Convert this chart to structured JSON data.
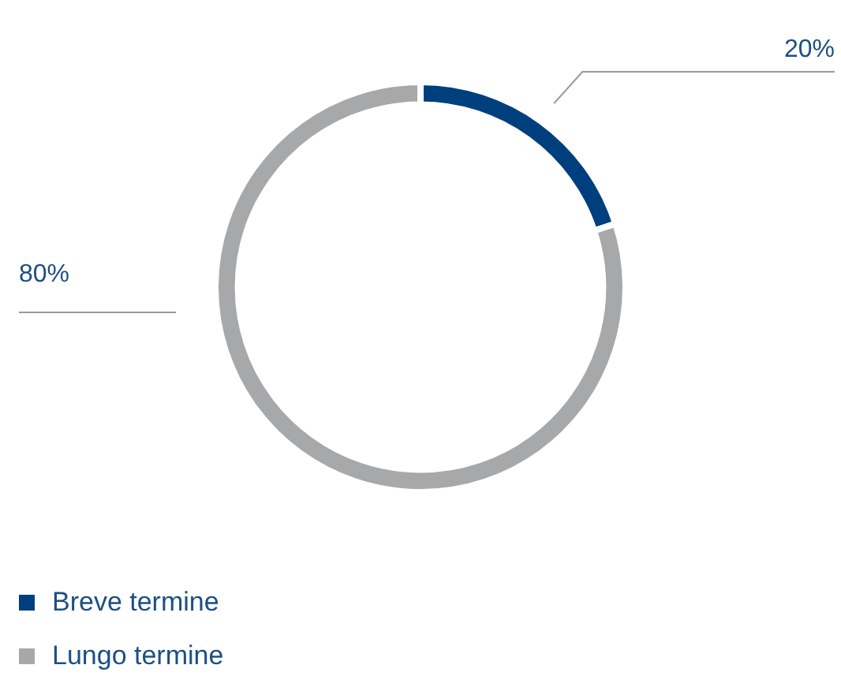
{
  "chart_data": {
    "type": "donut",
    "categories": [
      "Breve termine",
      "Lungo termine"
    ],
    "values": [
      20,
      80
    ],
    "colors": [
      "#003f7d",
      "#a7a8aa"
    ],
    "value_labels": [
      "20%",
      "80%"
    ],
    "legend": "bottom left"
  }
}
